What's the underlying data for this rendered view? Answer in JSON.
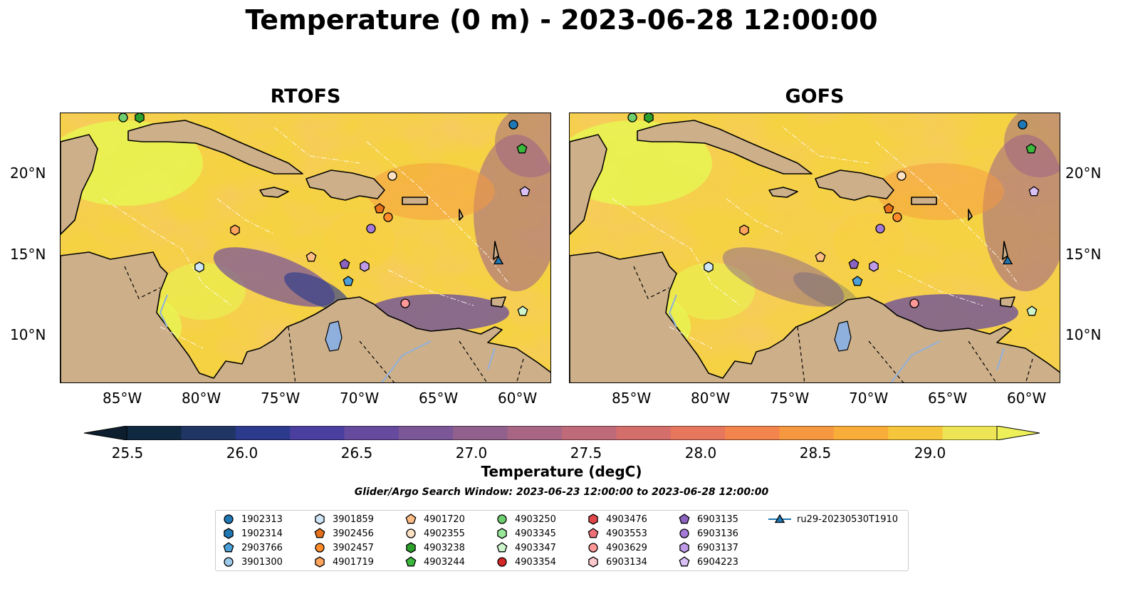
{
  "title": "Temperature (0 m) - 2023-06-28 12:00:00",
  "panels": [
    {
      "title": "RTOFS"
    },
    {
      "title": "GOFS"
    }
  ],
  "lon_labels": [
    "85°W",
    "80°W",
    "75°W",
    "70°W",
    "65°W",
    "60°W"
  ],
  "lat_labels": [
    "20°N",
    "15°N",
    "10°N"
  ],
  "colorbar": {
    "label": "Temperature (degC)",
    "ticks": [
      "25.5",
      "26.0",
      "26.5",
      "27.0",
      "27.5",
      "28.0",
      "28.5",
      "29.0"
    ],
    "colors": [
      "#0f2940",
      "#1f3563",
      "#2b3a8c",
      "#4a3f9f",
      "#654a9e",
      "#7c5797",
      "#91608d",
      "#a86684",
      "#bf6a78",
      "#d36e6a",
      "#e6765c",
      "#f3844d",
      "#f6983f",
      "#f8ad38",
      "#f5c63c",
      "#eee556"
    ]
  },
  "search_window": "Glider/Argo Search Window: 2023-06-23 12:00:00 to 2023-06-28 12:00:00",
  "legend": [
    {
      "label": "1902313",
      "shape": "circle",
      "color": "#1f77b4"
    },
    {
      "label": "1902314",
      "shape": "hexagon",
      "color": "#1f77b4"
    },
    {
      "label": "2903766",
      "shape": "pentagon",
      "color": "#4c9fd6"
    },
    {
      "label": "3901300",
      "shape": "circle",
      "color": "#9ecae9"
    },
    {
      "label": "3901859",
      "shape": "hexagon",
      "color": "#cfe6f6"
    },
    {
      "label": "3902456",
      "shape": "pentagon",
      "color": "#e6711a"
    },
    {
      "label": "3902457",
      "shape": "circle",
      "color": "#ff8c2b"
    },
    {
      "label": "4901719",
      "shape": "hexagon",
      "color": "#ffa45c"
    },
    {
      "label": "4901720",
      "shape": "pentagon",
      "color": "#ffbe85"
    },
    {
      "label": "4902355",
      "shape": "circle",
      "color": "#ffe2c4"
    },
    {
      "label": "4903238",
      "shape": "hexagon",
      "color": "#2ca02c"
    },
    {
      "label": "4903244",
      "shape": "pentagon",
      "color": "#3cb83c"
    },
    {
      "label": "4903250",
      "shape": "circle",
      "color": "#6fcf6f"
    },
    {
      "label": "4903345",
      "shape": "hexagon",
      "color": "#98e698"
    },
    {
      "label": "4903347",
      "shape": "pentagon",
      "color": "#ccf5cc"
    },
    {
      "label": "4903354",
      "shape": "circle",
      "color": "#d62728"
    },
    {
      "label": "4903476",
      "shape": "hexagon",
      "color": "#e0474b"
    },
    {
      "label": "4903553",
      "shape": "pentagon",
      "color": "#f0707a"
    },
    {
      "label": "4903629",
      "shape": "circle",
      "color": "#ff9896"
    },
    {
      "label": "6903134",
      "shape": "hexagon",
      "color": "#ffc8cc"
    },
    {
      "label": "6903135",
      "shape": "pentagon",
      "color": "#8c63c0"
    },
    {
      "label": "6903136",
      "shape": "circle",
      "color": "#a57ad6"
    },
    {
      "label": "6903137",
      "shape": "hexagon",
      "color": "#bf9ae6"
    },
    {
      "label": "6904223",
      "shape": "pentagon",
      "color": "#d9c0f5"
    },
    {
      "label": "ru29-20230530T1910",
      "shape": "triangle-line",
      "color": "#1f77b4"
    }
  ],
  "land_color": "#cdb08a",
  "lake_color": "#8fb0dd"
}
